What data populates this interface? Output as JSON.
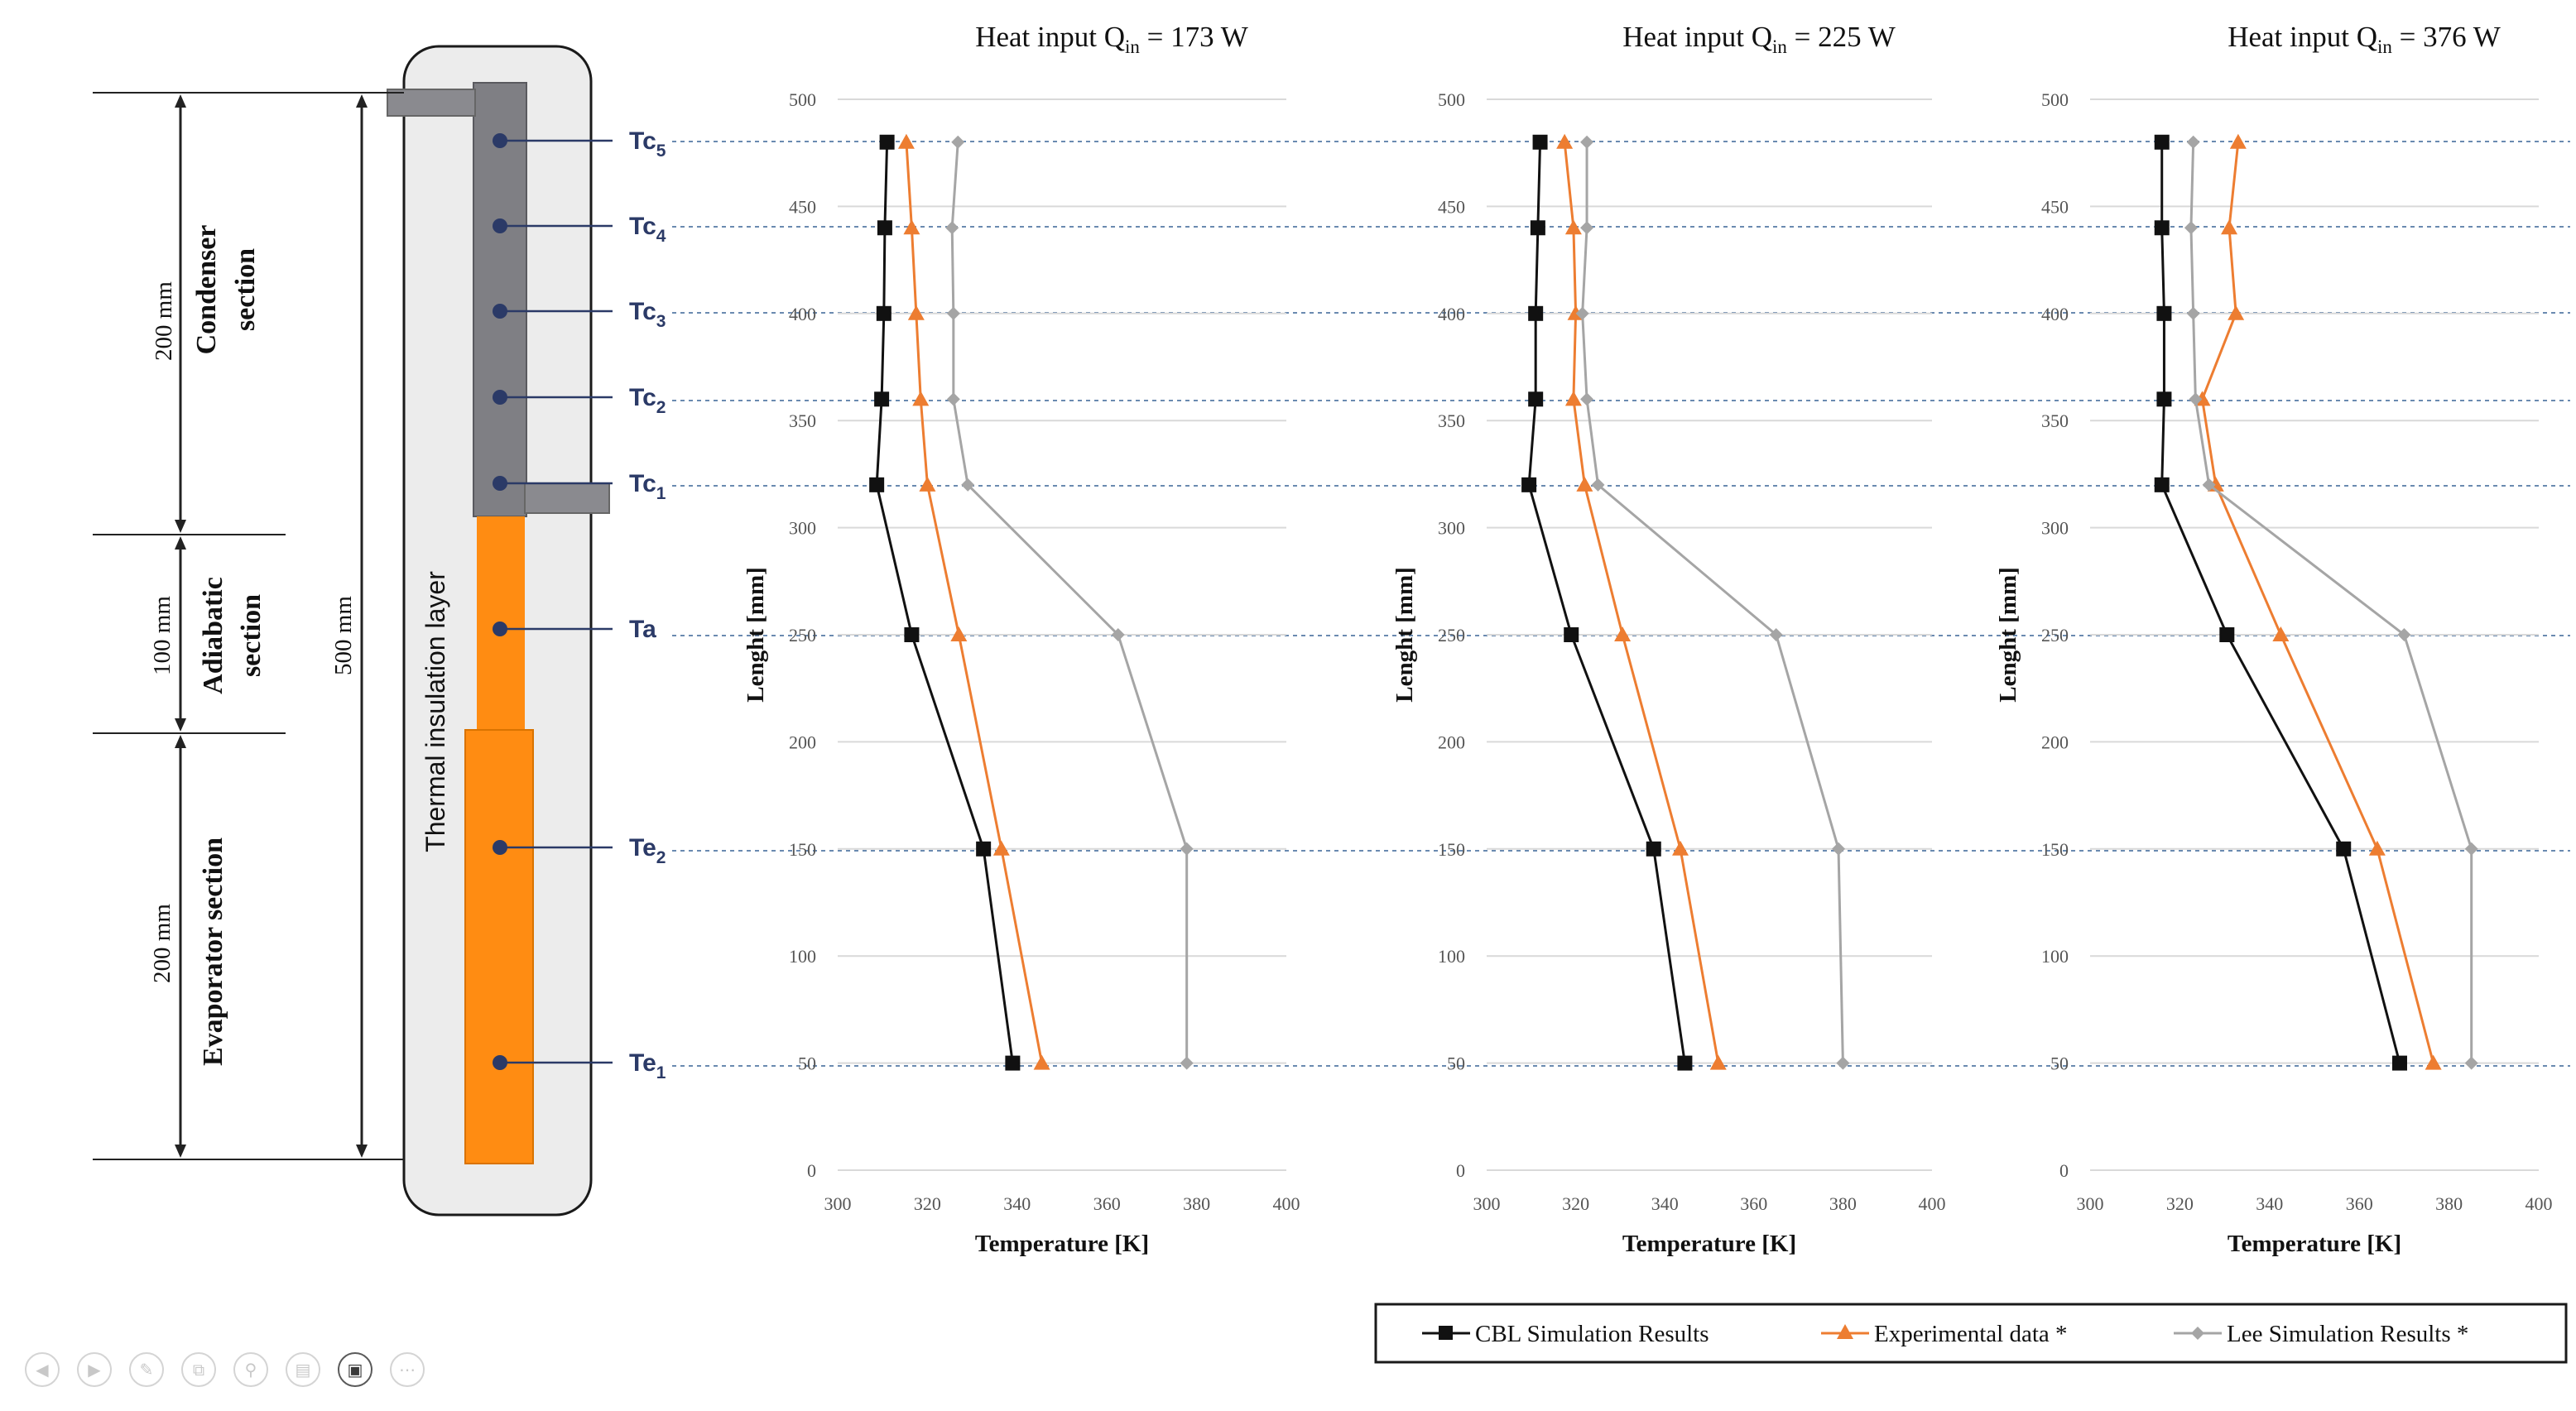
{
  "chart_data": [
    {
      "type": "line",
      "title": "Heat input Q",
      "title_sub": "in",
      "title_value": " = 173 W",
      "xlabel": "Temperature [K]",
      "ylabel": "Lenght [mm]",
      "xlim": [
        300,
        400
      ],
      "ylim": [
        0,
        500
      ],
      "xticks": [
        300,
        320,
        340,
        360,
        380,
        400
      ],
      "yticks": [
        0,
        50,
        100,
        150,
        200,
        250,
        300,
        350,
        400,
        450,
        500
      ],
      "grid": "horizontal",
      "series": [
        {
          "name": "CBL Simulation Results",
          "color": "#111111",
          "marker": "square",
          "points": [
            [
              339,
              50
            ],
            [
              332.5,
              150
            ],
            [
              316.5,
              250
            ],
            [
              308.7,
              320
            ],
            [
              309.8,
              360
            ],
            [
              310.3,
              400
            ],
            [
              310.5,
              440
            ],
            [
              311,
              480
            ]
          ]
        },
        {
          "name": "Experimental data *",
          "color": "#ed7d31",
          "marker": "triangle",
          "points": [
            [
              345.5,
              50
            ],
            [
              336.5,
              150
            ],
            [
              327,
              250
            ],
            [
              320,
              320
            ],
            [
              318.5,
              360
            ],
            [
              317.5,
              400
            ],
            [
              316.5,
              440
            ],
            [
              315.3,
              480
            ]
          ]
        },
        {
          "name": "Lee Simulation Results *",
          "color": "#a5a5a5",
          "marker": "diamond",
          "points": [
            [
              377.8,
              50
            ],
            [
              377.8,
              150
            ],
            [
              362.5,
              250
            ],
            [
              329,
              320
            ],
            [
              325.8,
              360
            ],
            [
              325.8,
              400
            ],
            [
              325.5,
              440
            ],
            [
              326.8,
              480
            ]
          ]
        }
      ]
    },
    {
      "type": "line",
      "title": "Heat input Q",
      "title_sub": "in",
      "title_value": " = 225 W",
      "xlabel": "Temperature [K]",
      "ylabel": "Lenght [mm]",
      "xlim": [
        300,
        400
      ],
      "ylim": [
        0,
        500
      ],
      "xticks": [
        300,
        320,
        340,
        360,
        380,
        400
      ],
      "yticks": [
        0,
        50,
        100,
        150,
        200,
        250,
        300,
        350,
        400,
        450,
        500
      ],
      "grid": "horizontal",
      "series": [
        {
          "name": "CBL Simulation Results",
          "color": "#111111",
          "marker": "square",
          "points": [
            [
              344.5,
              50
            ],
            [
              337.5,
              150
            ],
            [
              319,
              250
            ],
            [
              309.5,
              320
            ],
            [
              311,
              360
            ],
            [
              311,
              400
            ],
            [
              311.5,
              440
            ],
            [
              312,
              480
            ]
          ]
        },
        {
          "name": "Experimental data *",
          "color": "#ed7d31",
          "marker": "triangle",
          "points": [
            [
              352,
              50
            ],
            [
              343.5,
              150
            ],
            [
              330.5,
              250
            ],
            [
              322,
              320
            ],
            [
              319.5,
              360
            ],
            [
              320,
              400
            ],
            [
              319.5,
              440
            ],
            [
              317.5,
              480
            ]
          ]
        },
        {
          "name": "Lee Simulation Results *",
          "color": "#a5a5a5",
          "marker": "diamond",
          "points": [
            [
              380,
              50
            ],
            [
              379,
              150
            ],
            [
              365,
              250
            ],
            [
              325,
              320
            ],
            [
              322.5,
              360
            ],
            [
              321.5,
              400
            ],
            [
              322.5,
              440
            ],
            [
              322.5,
              480
            ]
          ]
        }
      ]
    },
    {
      "type": "line",
      "title": "Heat input Q",
      "title_sub": "in",
      "title_value": " = 376 W",
      "xlabel": "Temperature [K]",
      "ylabel": "Lenght [mm]",
      "xlim": [
        300,
        400
      ],
      "ylim": [
        0,
        500
      ],
      "xticks": [
        300,
        320,
        340,
        360,
        380,
        400
      ],
      "yticks": [
        0,
        50,
        100,
        150,
        200,
        250,
        300,
        350,
        400,
        450,
        500
      ],
      "grid": "horizontal",
      "series": [
        {
          "name": "CBL Simulation Results",
          "color": "#111111",
          "marker": "square",
          "points": [
            [
              369,
              50
            ],
            [
              356.5,
              150
            ],
            [
              330.5,
              250
            ],
            [
              316,
              320
            ],
            [
              316.5,
              360
            ],
            [
              316.5,
              400
            ],
            [
              316,
              440
            ],
            [
              316,
              480
            ]
          ]
        },
        {
          "name": "Experimental data *",
          "color": "#ed7d31",
          "marker": "triangle",
          "points": [
            [
              376.5,
              50
            ],
            [
              364,
              150
            ],
            [
              342.5,
              250
            ],
            [
              328,
              320
            ],
            [
              325,
              360
            ],
            [
              332.5,
              400
            ],
            [
              331,
              440
            ],
            [
              333,
              480
            ]
          ]
        },
        {
          "name": "Lee Simulation Results *",
          "color": "#a5a5a5",
          "marker": "diamond",
          "points": [
            [
              385,
              50
            ],
            [
              385,
              150
            ],
            [
              370,
              250
            ],
            [
              326.5,
              320
            ],
            [
              323.5,
              360
            ],
            [
              323,
              400
            ],
            [
              322.5,
              440
            ],
            [
              323,
              480
            ]
          ]
        }
      ]
    }
  ],
  "legend": {
    "placement": "bottom-right",
    "items": [
      "CBL Simulation Results",
      "Experimental data *",
      "Lee Simulation Results *"
    ]
  },
  "diagram": {
    "sensors": [
      {
        "base": "Tc",
        "sub": "5"
      },
      {
        "base": "Tc",
        "sub": "4"
      },
      {
        "base": "Tc",
        "sub": "3"
      },
      {
        "base": "Tc",
        "sub": "2"
      },
      {
        "base": "Tc",
        "sub": "1"
      },
      {
        "base": "Ta",
        "sub": ""
      },
      {
        "base": "Te",
        "sub": "2"
      },
      {
        "base": "Te",
        "sub": "1"
      }
    ],
    "insulation_label": "Thermal insulation layer",
    "total_length": "500 mm",
    "sections": [
      {
        "name_line1": "Condenser",
        "name_line2": "section",
        "length": "200 mm"
      },
      {
        "name_line1": "Adiabatic",
        "name_line2": "section",
        "length": "100 mm"
      },
      {
        "name_line1": "Evaporator section",
        "name_line2": "",
        "length": "200 mm"
      }
    ],
    "colors": {
      "condenser": "#7f7f84",
      "evaporator": "#ff8c12",
      "insulation": "#ececec",
      "sensor": "#2b3a67"
    }
  },
  "controls": [
    "prev-icon",
    "next-icon",
    "pen-icon",
    "copy-icon",
    "zoom-icon",
    "subtitle-icon",
    "video-icon",
    "more-icon"
  ]
}
